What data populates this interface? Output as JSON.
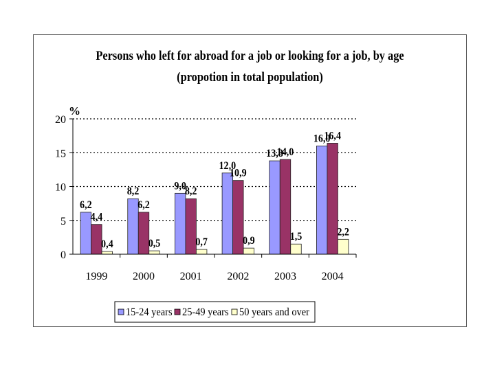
{
  "chart_data": {
    "type": "bar",
    "title": "Persons who left for abroad for a job or looking for a job, by age",
    "subtitle": "(propotion in total population)",
    "ylabel": "%",
    "xlabel": "",
    "ylim": [
      0,
      20
    ],
    "yticks": [
      "0",
      "5",
      "10",
      "15",
      "20"
    ],
    "grid": "horizontal dotted",
    "legend_position": "bottom",
    "categories": [
      "1999",
      "2000",
      "2001",
      "2002",
      "2003",
      "2004"
    ],
    "series": [
      {
        "name": "15-24 years",
        "color": "#9999ff",
        "values": [
          6.2,
          8.2,
          9.0,
          12.0,
          13.8,
          16.0
        ],
        "labels": [
          "6,2",
          "8,2",
          "9,0",
          "12,0",
          "13,8",
          "16,0"
        ]
      },
      {
        "name": "25-49 years",
        "color": "#993366",
        "values": [
          4.4,
          6.2,
          8.2,
          10.9,
          14.0,
          16.4
        ],
        "labels": [
          "4,4",
          "6,2",
          "8,2",
          "10,9",
          "14,0",
          "16,4"
        ]
      },
      {
        "name": "50 years and over",
        "color": "#ffffcc",
        "values": [
          0.4,
          0.5,
          0.7,
          0.9,
          1.5,
          2.2
        ],
        "labels": [
          "0,4",
          "0,5",
          "0,7",
          "0,9",
          "1,5",
          "2,2"
        ]
      }
    ]
  }
}
